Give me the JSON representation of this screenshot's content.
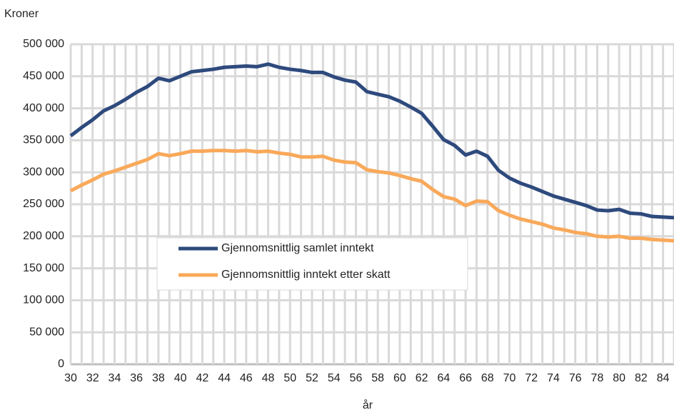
{
  "chart_data": {
    "type": "line",
    "y_axis_label": "Kroner",
    "x_axis_label": "år",
    "x": [
      30,
      31,
      32,
      33,
      34,
      35,
      36,
      37,
      38,
      39,
      40,
      41,
      42,
      43,
      44,
      45,
      46,
      47,
      48,
      49,
      50,
      51,
      52,
      53,
      54,
      55,
      56,
      57,
      58,
      59,
      60,
      61,
      62,
      63,
      64,
      65,
      66,
      67,
      68,
      69,
      70,
      71,
      72,
      73,
      74,
      75,
      76,
      77,
      78,
      79,
      80,
      81,
      82,
      83,
      84,
      85
    ],
    "series": [
      {
        "name": "Gjennomsnittlig samlet inntekt",
        "color": "#2e4a7d",
        "values": [
          357000,
          370000,
          382000,
          396000,
          404000,
          414000,
          425000,
          434000,
          447000,
          443000,
          450000,
          457000,
          459000,
          461000,
          464000,
          465000,
          466000,
          465000,
          469000,
          464000,
          461000,
          459000,
          456000,
          456000,
          449000,
          444000,
          441000,
          426000,
          422000,
          418000,
          411000,
          402000,
          392000,
          372000,
          351000,
          342000,
          327000,
          333000,
          325000,
          303000,
          291000,
          283000,
          277000,
          270000,
          263000,
          258000,
          253000,
          248000,
          241000,
          240000,
          242000,
          236000,
          235000,
          231000,
          230000,
          229000
        ]
      },
      {
        "name": "Gjennomsnittlig inntekt etter skatt",
        "color": "#f9a95a",
        "values": [
          271000,
          280000,
          288000,
          297000,
          302000,
          308000,
          314000,
          320000,
          329000,
          326000,
          329000,
          333000,
          333000,
          334000,
          334000,
          333000,
          334000,
          332000,
          333000,
          330000,
          328000,
          324000,
          324000,
          325000,
          319000,
          316000,
          315000,
          304000,
          301000,
          299000,
          295000,
          290000,
          286000,
          273000,
          262000,
          258000,
          248000,
          255000,
          254000,
          240000,
          233000,
          227000,
          223000,
          219000,
          213000,
          210000,
          206000,
          204000,
          200000,
          199000,
          200000,
          197000,
          197000,
          195000,
          194000,
          193000
        ]
      }
    ],
    "xlim": [
      30,
      85
    ],
    "xticks": [
      30,
      32,
      34,
      36,
      38,
      40,
      42,
      44,
      46,
      48,
      50,
      52,
      54,
      56,
      58,
      60,
      62,
      64,
      66,
      68,
      70,
      72,
      74,
      76,
      78,
      80,
      82,
      84
    ],
    "x_minor_ticks": [
      31,
      33,
      35,
      37,
      39,
      41,
      43,
      45,
      47,
      49,
      51,
      53,
      55,
      57,
      59,
      61,
      63,
      65,
      67,
      69,
      71,
      73,
      75,
      77,
      79,
      81,
      83,
      85
    ],
    "ylim": [
      0,
      500000
    ],
    "yticks": [
      0,
      {
        "value": 50000,
        "label": "50 000"
      },
      {
        "value": 100000,
        "label": "100 000"
      },
      {
        "value": 150000,
        "label": "150 000"
      },
      {
        "value": 200000,
        "label": "200 000"
      },
      {
        "value": 250000,
        "label": "250 000"
      },
      {
        "value": 300000,
        "label": "300 000"
      },
      {
        "value": 350000,
        "label": "350 000"
      },
      {
        "value": 400000,
        "label": "400 000"
      },
      {
        "value": 450000,
        "label": "450 000"
      },
      {
        "value": {
          "value": 500000
        },
        "label": "500 000"
      }
    ],
    "grid": true
  }
}
